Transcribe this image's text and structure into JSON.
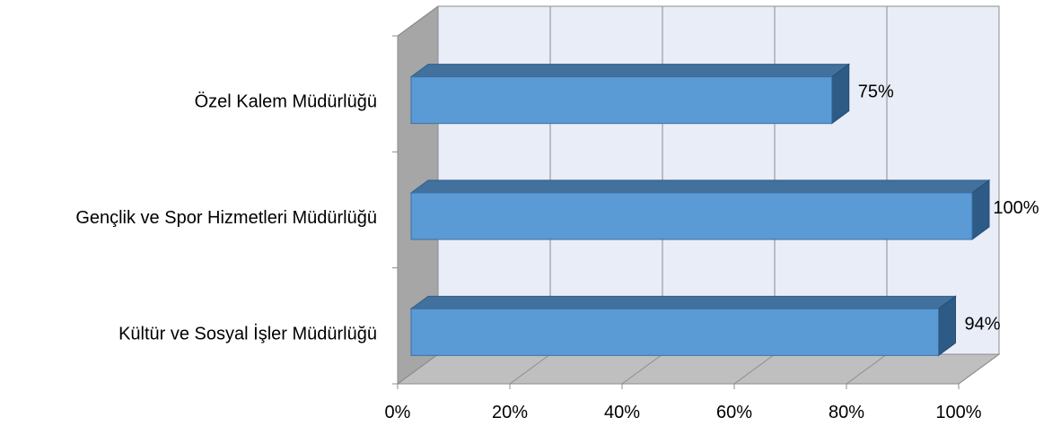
{
  "chart_data": {
    "type": "bar",
    "orientation": "horizontal",
    "three_d": true,
    "categories": [
      "Özel Kalem Müdürlüğü",
      "Gençlik ve Spor Hizmetleri Müdürlüğü",
      "Kültür ve Sosyal İşler Müdürlüğü"
    ],
    "values": [
      75,
      100,
      94
    ],
    "data_labels": [
      "75%",
      "100%",
      "94%"
    ],
    "x_ticks": [
      "0%",
      "20%",
      "40%",
      "60%",
      "80%",
      "100%"
    ],
    "xlim": [
      0,
      100
    ],
    "grid": true,
    "legend": "none",
    "colors": {
      "bar_front": "#5b9bd5",
      "bar_top": "#41719c",
      "bar_side": "#2e5a86",
      "back_wall": "#e9edf7",
      "side_wall": "#a6a6a6",
      "floor": "#bfbfbf",
      "gridline": "#8c8c8c"
    }
  }
}
